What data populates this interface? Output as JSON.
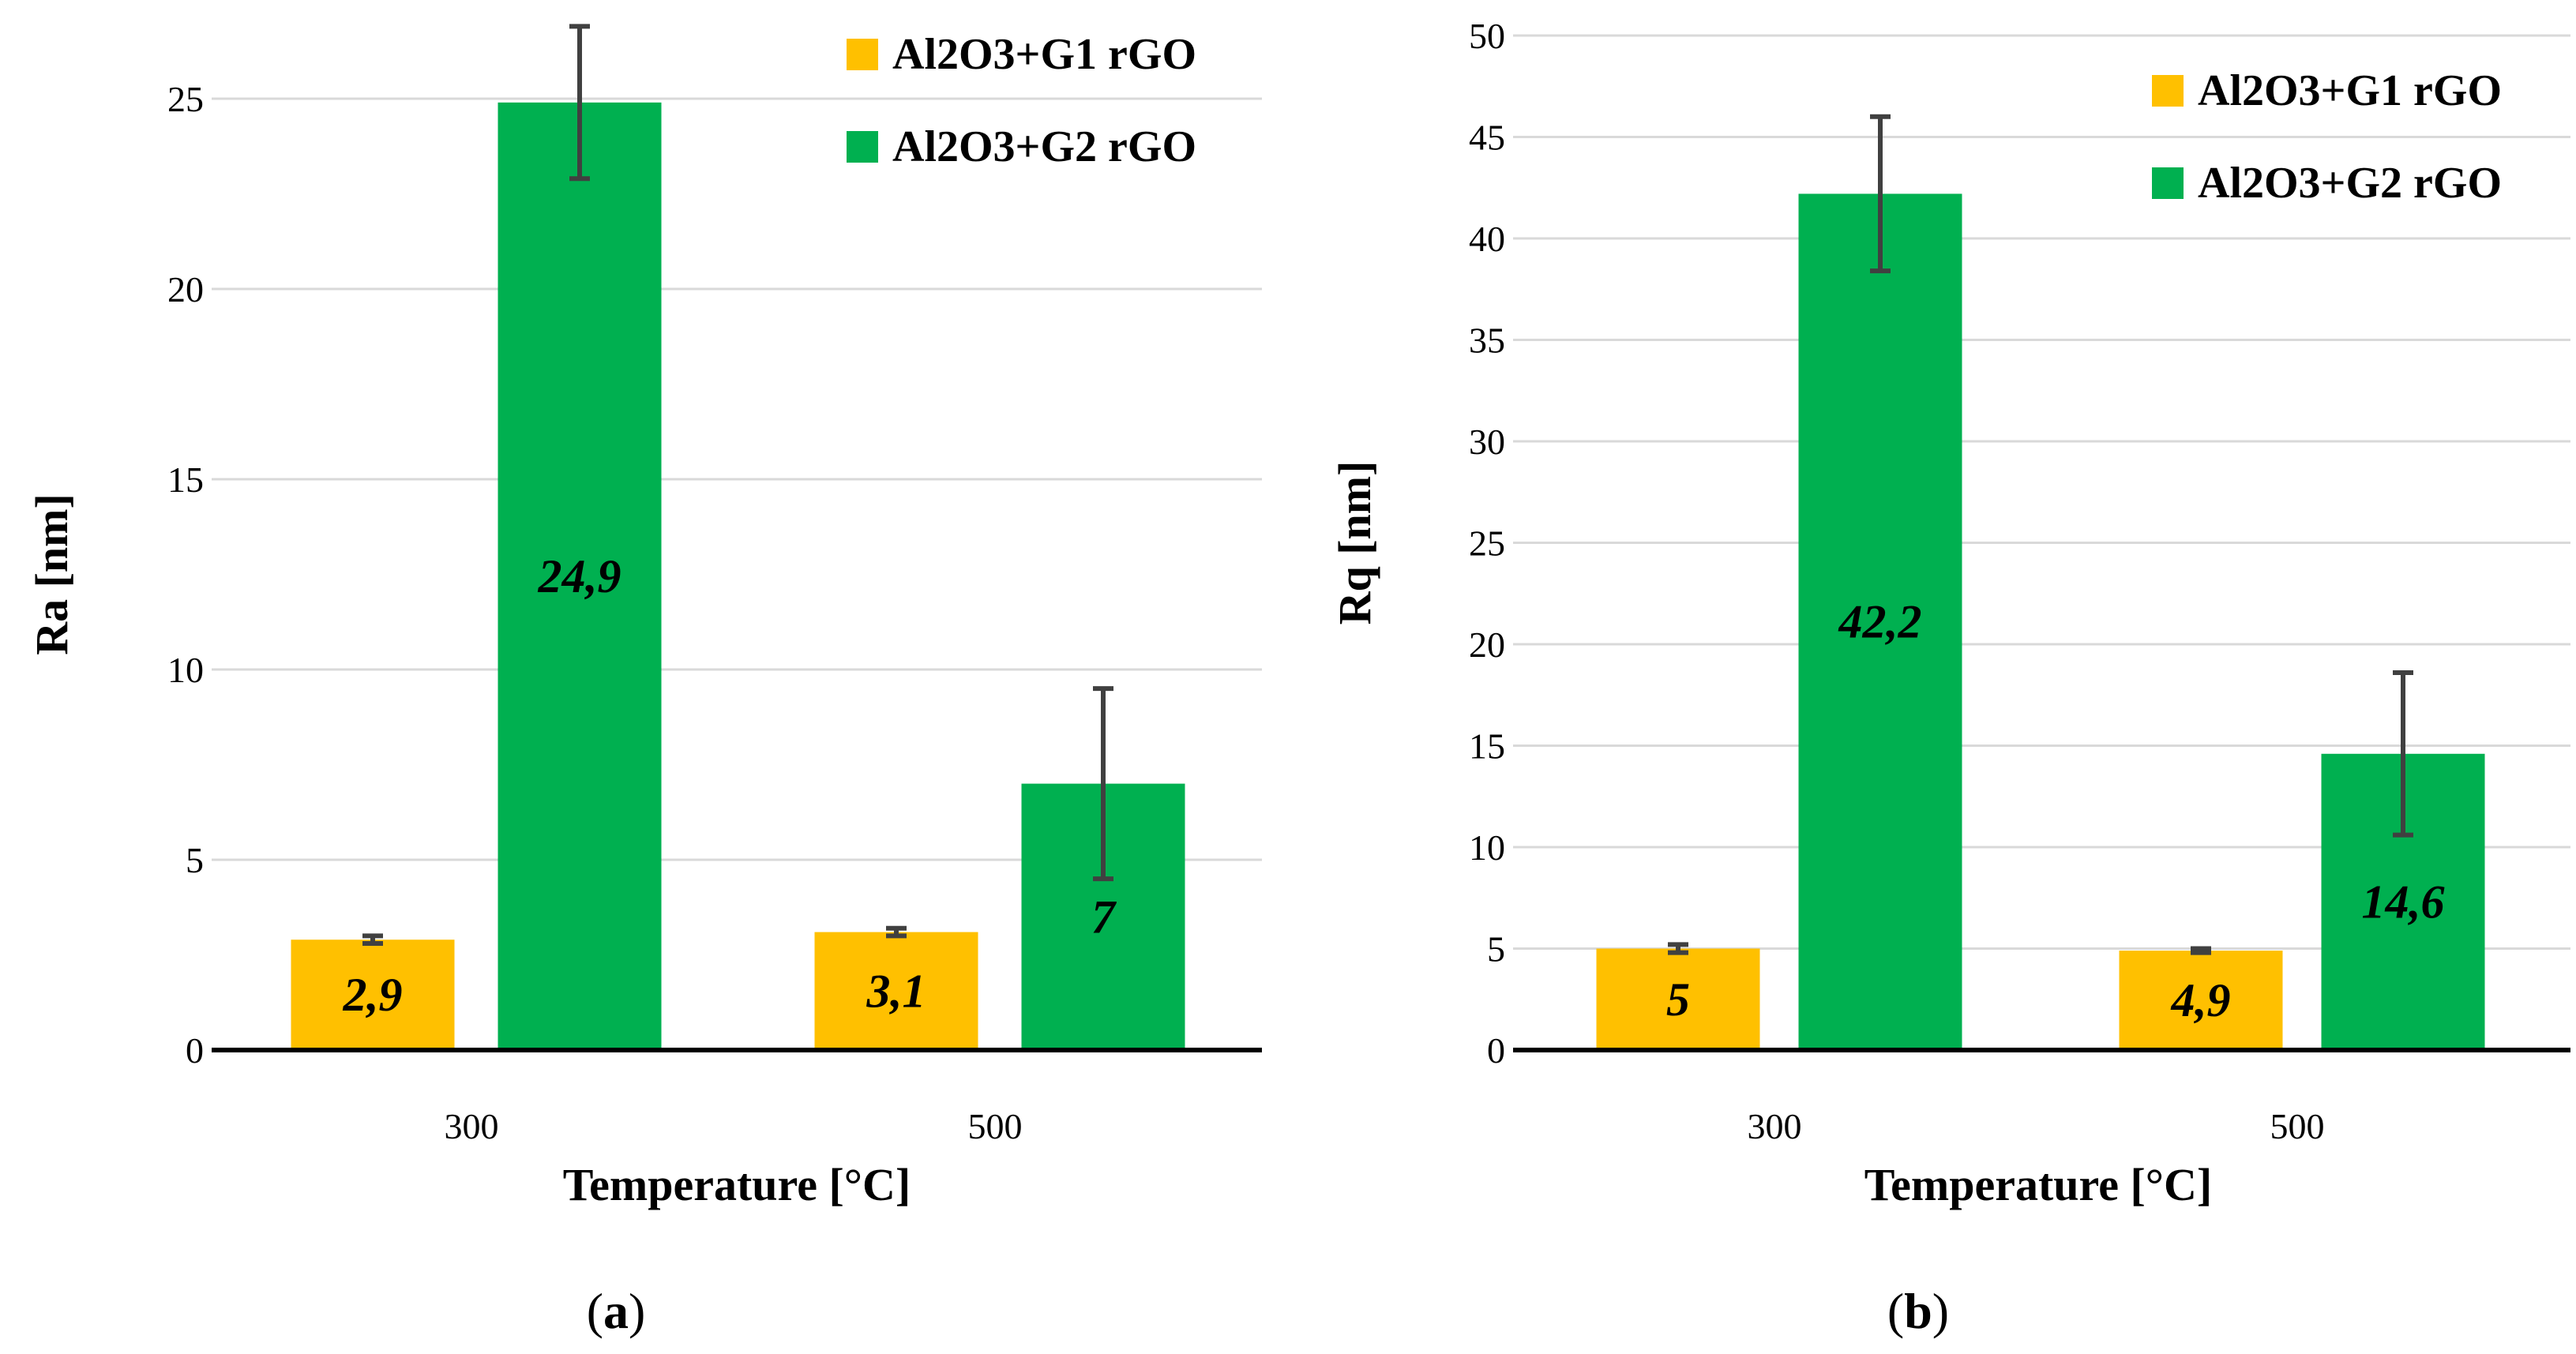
{
  "colors": {
    "series1": "#FFC000",
    "series2": "#00B050",
    "grid": "#D9D9D9",
    "axis": "#000000",
    "errorbar": "#404040"
  },
  "chart_data": [
    {
      "type": "bar",
      "panel_label": {
        "open": "(",
        "letter": "a",
        "close": ")"
      },
      "categories": [
        "300",
        "500"
      ],
      "xlabel": "Temperature [°C]",
      "ylabel": "Ra [nm]",
      "ylim": [
        0,
        25
      ],
      "yticks": [
        "0",
        "5",
        "10",
        "15",
        "20",
        "25"
      ],
      "ytick_values": [
        0,
        5,
        10,
        15,
        20,
        25
      ],
      "grid": true,
      "legend_position": "top-right",
      "series": [
        {
          "name": "Al2O3+G1 rGO",
          "values": [
            2.9,
            3.1
          ],
          "labels": [
            "2,9",
            "3,1"
          ],
          "errors": [
            0.1,
            0.1
          ]
        },
        {
          "name": "Al2O3+G2 rGO",
          "values": [
            24.9,
            7
          ],
          "labels": [
            "24,9",
            "7"
          ],
          "errors": [
            2.0,
            2.5
          ]
        }
      ]
    },
    {
      "type": "bar",
      "panel_label": {
        "open": "(",
        "letter": "b",
        "close": ")"
      },
      "categories": [
        "300",
        "500"
      ],
      "xlabel": "Temperature [°C]",
      "ylabel": "Rq [nm]",
      "ylim": [
        0,
        50
      ],
      "yticks": [
        "0",
        "5",
        "10",
        "15",
        "20",
        "25",
        "30",
        "35",
        "40",
        "45",
        "50"
      ],
      "ytick_values": [
        0,
        5,
        10,
        15,
        20,
        25,
        30,
        35,
        40,
        45,
        50
      ],
      "grid": true,
      "legend_position": "top-right",
      "series": [
        {
          "name": "Al2O3+G1 rGO",
          "values": [
            5,
            4.9
          ],
          "labels": [
            "5",
            "4,9"
          ],
          "errors": [
            0.2,
            0.1
          ]
        },
        {
          "name": "Al2O3+G2 rGO",
          "values": [
            42.2,
            14.6
          ],
          "labels": [
            "42,2",
            "14,6"
          ],
          "errors": [
            3.8,
            4.0
          ]
        }
      ]
    }
  ]
}
